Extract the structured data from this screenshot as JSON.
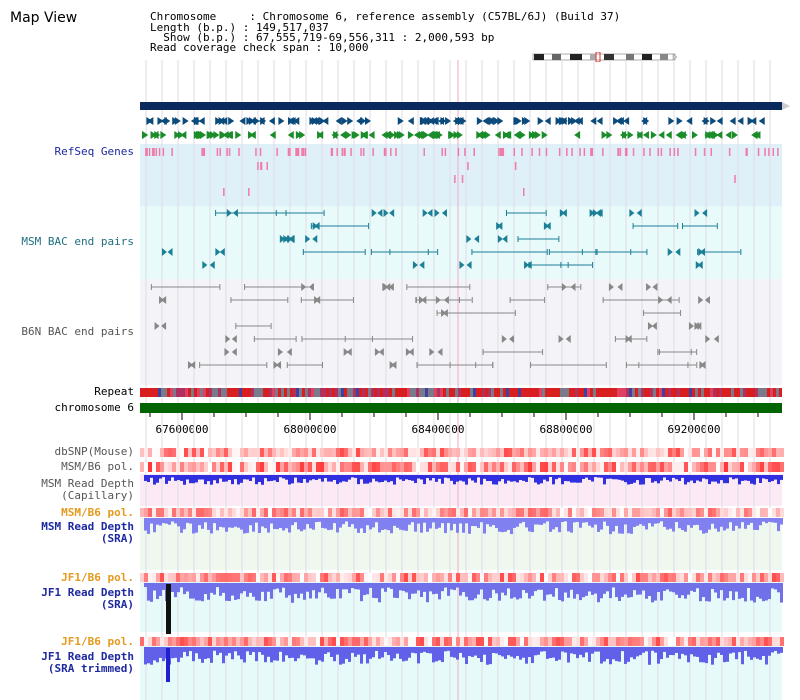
{
  "header": {
    "view_title": "Map View",
    "lines": [
      "Chromosome     : Chromosome 6, reference assembly (C57BL/6J) (Build 37)",
      "Length (b.p.) : 149,517,037",
      "  Show (b.p.) : 67,555,719-69,556,311 : 2,000,593 bp",
      "Read coverage check span : 10,000"
    ]
  },
  "tracks": {
    "refseq": {
      "label": "RefSeq Genes",
      "color": "#1d29a0"
    },
    "msm_bac": {
      "label": "MSM BAC end pairs",
      "color": "#1f6f7f"
    },
    "b6n_bac": {
      "label": "B6N BAC end pairs",
      "color": "#555555"
    },
    "repeat": {
      "label": "Repeat",
      "color": "#000000"
    },
    "chromosome": {
      "label": "chromosome 6",
      "color": "#000000"
    },
    "dbsnp": {
      "label": "dbSNP(Mouse)",
      "color": "#555555"
    },
    "msm_b6_pol_1": {
      "label": "MSM/B6 pol.",
      "color": "#555555"
    },
    "msm_depth_cap": {
      "label": "MSM Read Depth\n(Capillary)",
      "color": "#555555"
    },
    "msm_b6_pol_2": {
      "label": "MSM/B6 pol.",
      "color": "#e39a1e"
    },
    "msm_depth_sra": {
      "label": "MSM Read Depth\n(SRA)",
      "color": "#1d29a0"
    },
    "jf1_b6_pol_1": {
      "label": "JF1/B6 pol.",
      "color": "#e39a1e"
    },
    "jf1_depth_sra": {
      "label": "JF1 Read Depth\n(SRA)",
      "color": "#1d29a0"
    },
    "jf1_b6_pol_2": {
      "label": "JF1/B6 pol.",
      "color": "#e39a1e"
    },
    "jf1_depth_trim": {
      "label": "JF1 Read Depth\n(SRA trimmed)",
      "color": "#1d29a0"
    }
  },
  "axis": {
    "ticks": [
      "67600000",
      "68000000",
      "68400000",
      "68800000",
      "69200000"
    ]
  },
  "colors": {
    "refseq_band": "#dff0f8",
    "msm_band": "#e8fafa",
    "b6n_band": "#f4f4f8",
    "gene_dark": "#0b4a7a",
    "gene_green": "#1a8c2a",
    "gene_pink": "#f07aa8",
    "msm_marker": "#1b7f95",
    "b6n_marker": "#888888",
    "navy_bar": "#0a2a5e",
    "chromosome_bar": "#006400",
    "depth_blue": "#3333dd",
    "pol_red": "#e83030"
  }
}
